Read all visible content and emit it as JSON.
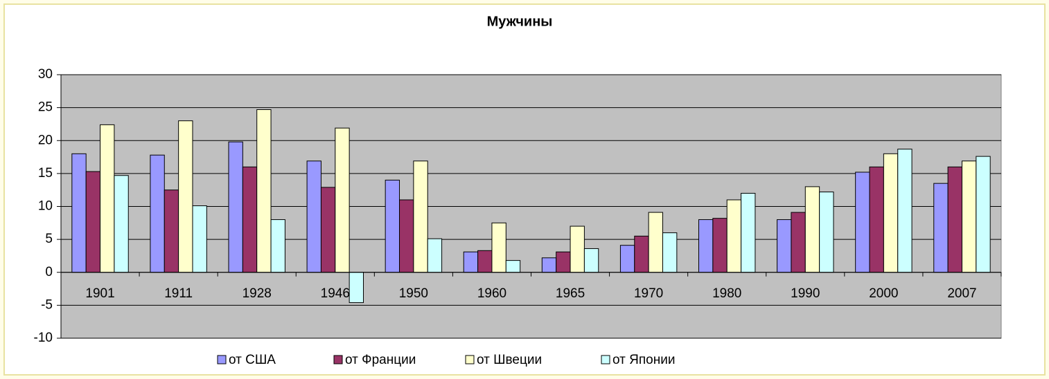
{
  "chart_data": {
    "type": "bar",
    "title": "Мужчины",
    "categories": [
      "1901",
      "1911",
      "1928",
      "1946",
      "1950",
      "1960",
      "1965",
      "1970",
      "1980",
      "1990",
      "2000",
      "2007"
    ],
    "series": [
      {
        "name": "от США",
        "color": "#9999ff",
        "values": [
          18,
          17.8,
          19.8,
          16.9,
          14,
          3.1,
          2.2,
          4.1,
          8,
          8,
          15.2,
          13.5
        ]
      },
      {
        "name": "от Франции",
        "color": "#993366",
        "values": [
          15.3,
          12.5,
          16,
          12.9,
          11,
          3.3,
          3.1,
          5.5,
          8.2,
          9.1,
          16,
          16
        ]
      },
      {
        "name": "от Швеции",
        "color": "#ffffcc",
        "values": [
          22.4,
          23,
          24.7,
          21.9,
          16.9,
          7.5,
          7,
          9.1,
          11,
          13,
          18,
          16.9
        ]
      },
      {
        "name": "от Японии",
        "color": "#ccffff",
        "values": [
          14.7,
          10.1,
          8,
          -4.6,
          5.1,
          1.8,
          3.6,
          6,
          12,
          12.2,
          18.7,
          17.6
        ]
      }
    ],
    "ylim": [
      -10,
      30
    ],
    "yticks": [
      -10,
      -5,
      0,
      5,
      10,
      15,
      20,
      25,
      30
    ],
    "grid": true,
    "legend": "bottom"
  }
}
